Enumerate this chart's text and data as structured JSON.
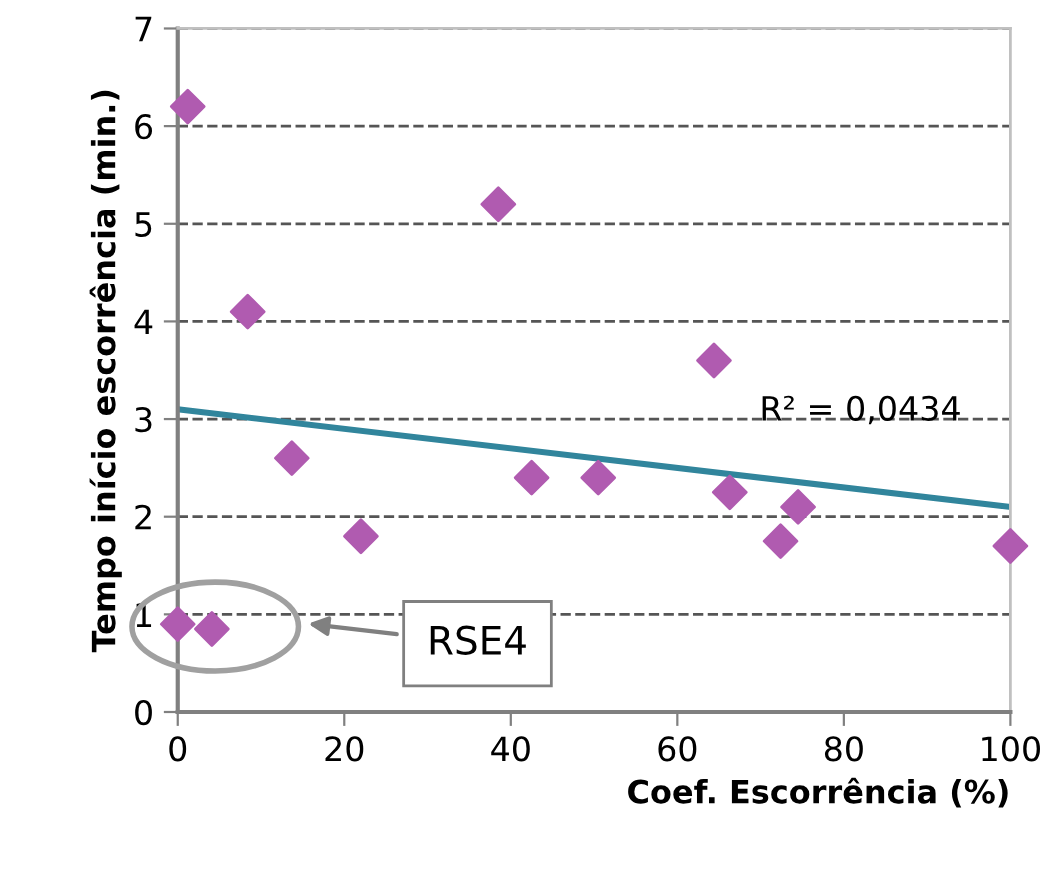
{
  "chart_data": {
    "type": "scatter",
    "xlabel": "Coef. Escorrência (%)",
    "ylabel": "Tempo início escorrência (min.)",
    "xlim": [
      0,
      100
    ],
    "ylim": [
      0,
      7
    ],
    "xticks": [
      0,
      20,
      40,
      60,
      80,
      100
    ],
    "yticks": [
      0,
      1,
      2,
      3,
      4,
      5,
      6,
      7
    ],
    "grid": "y",
    "legend": false,
    "series": [
      {
        "color": "#b05bb0",
        "marker": "diamond",
        "x": [
          1.2,
          8.4,
          13.7,
          22,
          38.5,
          42.5,
          50.5,
          64.4,
          66.3,
          72.4,
          74.5,
          100,
          0,
          4.1
        ],
        "values": [
          6.2,
          4.1,
          2.6,
          1.8,
          5.2,
          2.4,
          2.4,
          3.6,
          2.25,
          1.75,
          2.1,
          1.7,
          0.9,
          0.85
        ]
      },
      {
        "type": "line",
        "color": "#31859c",
        "x": [
          0,
          100
        ],
        "values": [
          3.1,
          2.1
        ]
      }
    ],
    "annotations": [
      "RSE4",
      "R² = 0,0434"
    ]
  }
}
